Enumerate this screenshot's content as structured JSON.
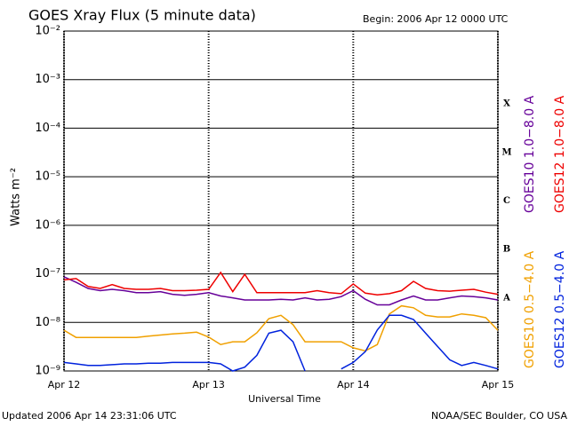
{
  "chart_data": {
    "type": "line",
    "title": "GOES Xray Flux (5 minute data)",
    "subtitle": "Begin:  2006 Apr 12 0000 UTC",
    "xlabel": "Universal Time",
    "ylabel": "Watts m⁻²",
    "footer_left": "Updated 2006 Apr 14 23:31:06 UTC",
    "footer_right": "NOAA/SEC Boulder, CO USA",
    "log_y": true,
    "grid": true,
    "xlim": [
      0,
      72
    ],
    "xticks": [
      {
        "value": 0,
        "label": "Apr 12"
      },
      {
        "value": 24,
        "label": "Apr 13"
      },
      {
        "value": 48,
        "label": "Apr 14"
      },
      {
        "value": 72,
        "label": "Apr 15"
      }
    ],
    "ylim": [
      1e-09,
      0.01
    ],
    "yticks": [
      {
        "value": 0.01,
        "label": "10⁻²"
      },
      {
        "value": 0.001,
        "label": "10⁻³"
      },
      {
        "value": 0.0001,
        "label": "10⁻⁴"
      },
      {
        "value": 1e-05,
        "label": "10⁻⁵"
      },
      {
        "value": 1e-06,
        "label": "10⁻⁶"
      },
      {
        "value": 1e-07,
        "label": "10⁻⁷"
      },
      {
        "value": 1e-08,
        "label": "10⁻⁸"
      },
      {
        "value": 1e-09,
        "label": "10⁻⁹"
      }
    ],
    "class_labels": [
      {
        "value": 0.0001,
        "label": "X"
      },
      {
        "value": 1e-05,
        "label": "M"
      },
      {
        "value": 1e-06,
        "label": "C"
      },
      {
        "value": 1e-07,
        "label": "B"
      },
      {
        "value": 1e-08,
        "label": "A"
      }
    ],
    "x": [
      0,
      2,
      4,
      6,
      8,
      10,
      12,
      14,
      16,
      18,
      20,
      22,
      24,
      26,
      28,
      30,
      32,
      34,
      36,
      38,
      40,
      42,
      44,
      46,
      48,
      50,
      52,
      54,
      56,
      58,
      60,
      62,
      64,
      66,
      68,
      70,
      72
    ],
    "series": [
      {
        "name": "GOES10 1.0−8.0 A",
        "color": "#660099",
        "values": [
          8.7e-08,
          6.7e-08,
          5e-08,
          4.5e-08,
          4.8e-08,
          4.5e-08,
          4.1e-08,
          4.1e-08,
          4.3e-08,
          3.8e-08,
          3.6e-08,
          3.8e-08,
          4.1e-08,
          3.5e-08,
          3.2e-08,
          2.9e-08,
          2.9e-08,
          2.9e-08,
          3e-08,
          2.9e-08,
          3.2e-08,
          2.9e-08,
          3e-08,
          3.4e-08,
          4.5e-08,
          3e-08,
          2.3e-08,
          2.3e-08,
          2.9e-08,
          3.5e-08,
          2.9e-08,
          2.9e-08,
          3.2e-08,
          3.5e-08,
          3.4e-08,
          3.2e-08,
          2.9e-08
        ]
      },
      {
        "name": "GOES12 1.0−8.0 A",
        "color": "#ee0000",
        "values": [
          7.5e-08,
          8e-08,
          5.5e-08,
          5e-08,
          6e-08,
          5e-08,
          4.8e-08,
          4.8e-08,
          5e-08,
          4.5e-08,
          4.5e-08,
          4.6e-08,
          4.8e-08,
          1.07e-07,
          4.3e-08,
          9.8e-08,
          4.1e-08,
          4.1e-08,
          4.1e-08,
          4.1e-08,
          4.1e-08,
          4.5e-08,
          4.1e-08,
          3.9e-08,
          6.2e-08,
          4e-08,
          3.7e-08,
          3.9e-08,
          4.5e-08,
          7e-08,
          5e-08,
          4.5e-08,
          4.4e-08,
          4.6e-08,
          4.8e-08,
          4.2e-08,
          3.8e-08
        ]
      },
      {
        "name": "GOES10 0.5−4.0 A",
        "color": "#f0a000",
        "values": [
          6.9e-09,
          4.9e-09,
          4.9e-09,
          4.9e-09,
          4.9e-09,
          4.9e-09,
          4.9e-09,
          5.2e-09,
          5.5e-09,
          5.8e-09,
          6e-09,
          6.3e-09,
          5e-09,
          3.5e-09,
          4e-09,
          4e-09,
          6.1e-09,
          1.2e-08,
          1.4e-08,
          9e-09,
          4e-09,
          4e-09,
          4e-09,
          4e-09,
          3e-09,
          2.6e-09,
          3.5e-09,
          1.5e-08,
          2.2e-08,
          2e-08,
          1.4e-08,
          1.3e-08,
          1.3e-08,
          1.5e-08,
          1.4e-08,
          1.25e-08,
          6.9e-09
        ]
      },
      {
        "name": "GOES12 0.5−4.0 A",
        "color": "#0022dd",
        "values": [
          1.5e-09,
          1.4e-09,
          1.3e-09,
          1.3e-09,
          1.35e-09,
          1.4e-09,
          1.4e-09,
          1.45e-09,
          1.45e-09,
          1.5e-09,
          1.5e-09,
          1.5e-09,
          1.5e-09,
          1.4e-09,
          1e-09,
          1.2e-09,
          2.1e-09,
          6e-09,
          6.9e-09,
          4e-09,
          1e-09,
          null,
          null,
          1.1e-09,
          1.5e-09,
          2.5e-09,
          7e-09,
          1.4e-08,
          1.4e-08,
          1.15e-08,
          6e-09,
          3.2e-09,
          1.7e-09,
          1.3e-09,
          1.5e-09,
          1.3e-09,
          1.1e-09
        ]
      }
    ]
  }
}
